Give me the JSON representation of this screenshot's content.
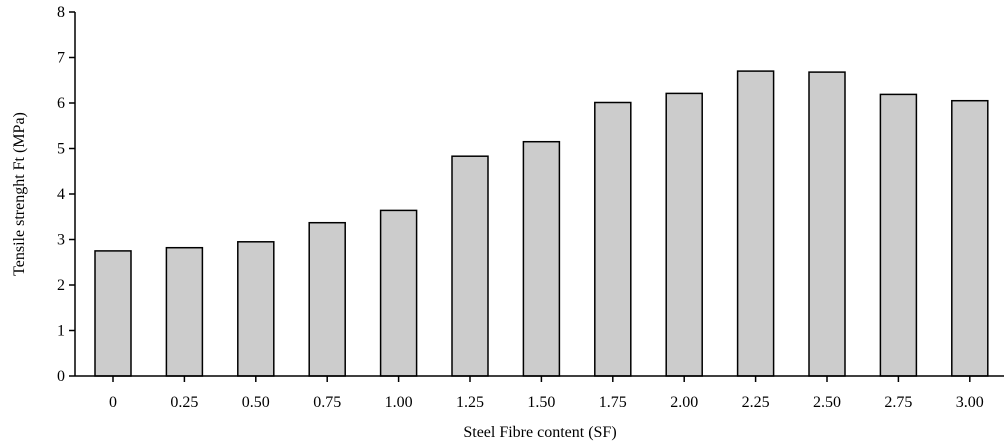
{
  "chart_data": {
    "type": "bar",
    "title": "",
    "xlabel": "Steel Fibre content (SF)",
    "ylabel": "Tensile strenght Ft (MPa)",
    "categories": [
      "0",
      "0.25",
      "0.50",
      "0.75",
      "1.00",
      "1.25",
      "1.50",
      "1.75",
      "2.00",
      "2.25",
      "2.50",
      "2.75",
      "3.00"
    ],
    "values": [
      2.75,
      2.82,
      2.95,
      3.37,
      3.64,
      4.83,
      5.15,
      6.01,
      6.21,
      6.7,
      6.68,
      6.19,
      6.05
    ],
    "ylim": [
      0,
      8
    ],
    "yticks": [
      "0",
      "1",
      "2",
      "3",
      "4",
      "5",
      "6",
      "7",
      "8"
    ],
    "grid": false,
    "legend": "none",
    "bar_color": "#cccccc",
    "edge_color": "#000000"
  }
}
